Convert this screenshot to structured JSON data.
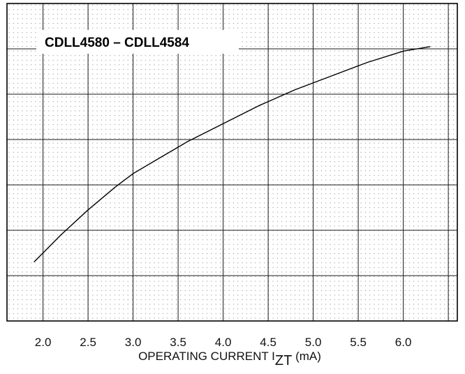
{
  "chart_data": {
    "type": "line",
    "title": "CDLL4580 – CDLL4584",
    "xlabel": {
      "prefix": "OPERATING CURRENT I",
      "subscript": "ZT",
      "suffix": " (mA)"
    },
    "ylabel": "",
    "xlim": [
      1.6,
      6.6
    ],
    "ylim": [
      0,
      7
    ],
    "x_ticks": [
      "2.0",
      "2.5",
      "3.0",
      "3.5",
      "4.0",
      "4.5",
      "5.0",
      "5.5",
      "6.0"
    ],
    "grid": true,
    "legend": "none",
    "series": [
      {
        "x": [
          1.9,
          2.2,
          2.5,
          2.8,
          3.0,
          3.3,
          3.6,
          4.0,
          4.4,
          4.8,
          5.2,
          5.6,
          6.0,
          6.3
        ],
        "y": [
          1.3,
          1.9,
          2.45,
          2.95,
          3.25,
          3.6,
          3.95,
          4.35,
          4.75,
          5.1,
          5.4,
          5.7,
          5.95,
          6.05
        ]
      }
    ]
  }
}
